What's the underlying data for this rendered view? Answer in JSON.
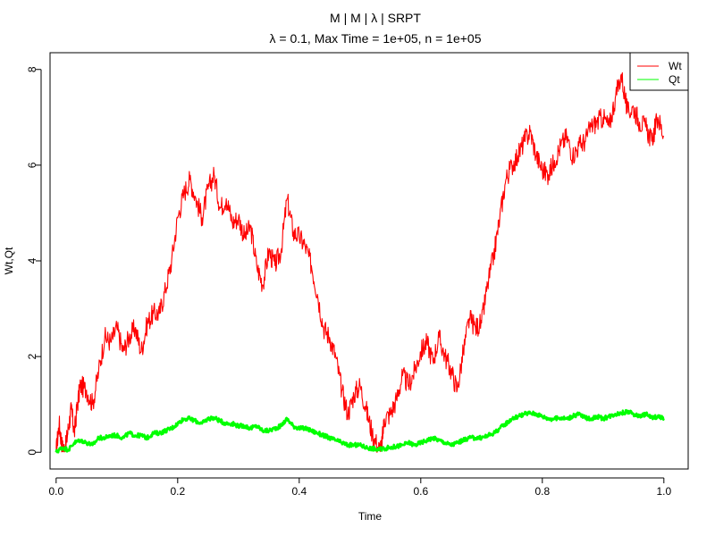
{
  "chart_data": {
    "type": "line",
    "title": "M | M | λ | SRPT",
    "subtitle": "λ = 0.1, Max Time = 1e+05, n = 1e+05",
    "xlabel": "Time",
    "ylabel": "Wt,Qt",
    "xlim": [
      -0.01,
      1.04
    ],
    "ylim": [
      -0.35,
      8.35
    ],
    "x_ticks": [
      0,
      0.2,
      0.4,
      0.6,
      0.8,
      1.0
    ],
    "x_tick_labels": [
      "0.0",
      "0.2",
      "0.4",
      "0.6",
      "0.8",
      "1.0"
    ],
    "y_ticks": [
      0,
      2,
      4,
      6,
      8
    ],
    "y_tick_labels": [
      "0",
      "2",
      "4",
      "6",
      "8"
    ],
    "grid": false,
    "legend_position": "top-right",
    "series": [
      {
        "name": "Wt",
        "color": "#ff0000",
        "x": [
          0.0,
          0.005,
          0.01,
          0.015,
          0.02,
          0.025,
          0.03,
          0.035,
          0.04,
          0.05,
          0.06,
          0.07,
          0.08,
          0.09,
          0.1,
          0.11,
          0.12,
          0.13,
          0.14,
          0.15,
          0.16,
          0.17,
          0.18,
          0.19,
          0.2,
          0.21,
          0.22,
          0.23,
          0.24,
          0.25,
          0.26,
          0.27,
          0.28,
          0.29,
          0.3,
          0.31,
          0.32,
          0.33,
          0.34,
          0.35,
          0.36,
          0.37,
          0.38,
          0.39,
          0.4,
          0.41,
          0.42,
          0.43,
          0.44,
          0.45,
          0.46,
          0.47,
          0.48,
          0.49,
          0.5,
          0.51,
          0.52,
          0.53,
          0.535,
          0.54,
          0.55,
          0.56,
          0.57,
          0.58,
          0.59,
          0.6,
          0.61,
          0.62,
          0.63,
          0.64,
          0.65,
          0.66,
          0.67,
          0.68,
          0.69,
          0.7,
          0.71,
          0.72,
          0.73,
          0.74,
          0.75,
          0.76,
          0.77,
          0.78,
          0.79,
          0.8,
          0.81,
          0.82,
          0.83,
          0.84,
          0.85,
          0.86,
          0.87,
          0.88,
          0.89,
          0.9,
          0.91,
          0.92,
          0.93,
          0.94,
          0.95,
          0.96,
          0.97,
          0.98,
          0.99,
          1.0
        ],
        "values": [
          0.0,
          0.6,
          0.1,
          0.05,
          0.5,
          0.9,
          0.4,
          1.0,
          1.4,
          1.3,
          1.0,
          1.7,
          2.4,
          2.3,
          2.6,
          2.1,
          2.4,
          2.6,
          2.1,
          2.7,
          2.9,
          2.9,
          3.4,
          4.0,
          4.9,
          5.4,
          5.7,
          5.3,
          4.9,
          5.5,
          5.8,
          5.1,
          5.3,
          4.8,
          4.9,
          4.5,
          4.7,
          3.9,
          3.5,
          4.2,
          3.9,
          4.2,
          5.3,
          4.6,
          4.5,
          4.3,
          3.9,
          3.3,
          2.6,
          2.4,
          2.0,
          1.3,
          0.8,
          1.2,
          1.4,
          0.9,
          0.4,
          0.1,
          0.05,
          0.7,
          0.8,
          1.1,
          1.6,
          1.4,
          1.7,
          2.1,
          2.3,
          1.9,
          2.4,
          2.0,
          1.7,
          1.3,
          2.1,
          2.8,
          2.6,
          2.7,
          3.5,
          4.1,
          4.9,
          5.7,
          6.0,
          6.2,
          6.5,
          6.7,
          6.2,
          5.9,
          5.8,
          6.1,
          6.4,
          6.6,
          6.2,
          6.4,
          6.5,
          6.8,
          6.9,
          7.0,
          6.8,
          7.4,
          7.9,
          7.1,
          7.2,
          6.9,
          6.8,
          6.5,
          7.0,
          6.6
        ]
      },
      {
        "name": "Qt",
        "color": "#00ff00",
        "x": [
          0.0,
          0.01,
          0.02,
          0.03,
          0.04,
          0.05,
          0.06,
          0.07,
          0.08,
          0.09,
          0.1,
          0.11,
          0.12,
          0.13,
          0.14,
          0.15,
          0.16,
          0.17,
          0.18,
          0.19,
          0.2,
          0.21,
          0.22,
          0.23,
          0.24,
          0.25,
          0.26,
          0.27,
          0.28,
          0.29,
          0.3,
          0.31,
          0.32,
          0.33,
          0.34,
          0.35,
          0.36,
          0.37,
          0.38,
          0.39,
          0.4,
          0.41,
          0.42,
          0.43,
          0.44,
          0.45,
          0.46,
          0.47,
          0.48,
          0.49,
          0.5,
          0.51,
          0.52,
          0.53,
          0.54,
          0.55,
          0.56,
          0.57,
          0.58,
          0.59,
          0.6,
          0.61,
          0.62,
          0.63,
          0.64,
          0.65,
          0.66,
          0.67,
          0.68,
          0.69,
          0.7,
          0.71,
          0.72,
          0.73,
          0.74,
          0.75,
          0.76,
          0.77,
          0.78,
          0.79,
          0.8,
          0.81,
          0.82,
          0.83,
          0.84,
          0.85,
          0.86,
          0.87,
          0.88,
          0.89,
          0.9,
          0.91,
          0.92,
          0.93,
          0.94,
          0.95,
          0.96,
          0.97,
          0.98,
          0.99,
          1.0
        ],
        "values": [
          0.0,
          0.1,
          0.05,
          0.2,
          0.25,
          0.2,
          0.15,
          0.3,
          0.3,
          0.35,
          0.35,
          0.3,
          0.4,
          0.35,
          0.35,
          0.3,
          0.4,
          0.4,
          0.45,
          0.5,
          0.6,
          0.7,
          0.7,
          0.65,
          0.6,
          0.7,
          0.72,
          0.65,
          0.6,
          0.6,
          0.55,
          0.55,
          0.5,
          0.55,
          0.45,
          0.45,
          0.5,
          0.55,
          0.7,
          0.55,
          0.5,
          0.5,
          0.45,
          0.4,
          0.35,
          0.3,
          0.25,
          0.2,
          0.15,
          0.15,
          0.15,
          0.1,
          0.08,
          0.05,
          0.08,
          0.1,
          0.12,
          0.15,
          0.2,
          0.15,
          0.2,
          0.25,
          0.3,
          0.25,
          0.2,
          0.15,
          0.2,
          0.25,
          0.3,
          0.3,
          0.3,
          0.35,
          0.4,
          0.5,
          0.6,
          0.7,
          0.75,
          0.8,
          0.82,
          0.8,
          0.75,
          0.7,
          0.7,
          0.72,
          0.7,
          0.75,
          0.8,
          0.72,
          0.7,
          0.75,
          0.7,
          0.75,
          0.8,
          0.82,
          0.85,
          0.8,
          0.75,
          0.8,
          0.72,
          0.75,
          0.7
        ]
      }
    ]
  }
}
